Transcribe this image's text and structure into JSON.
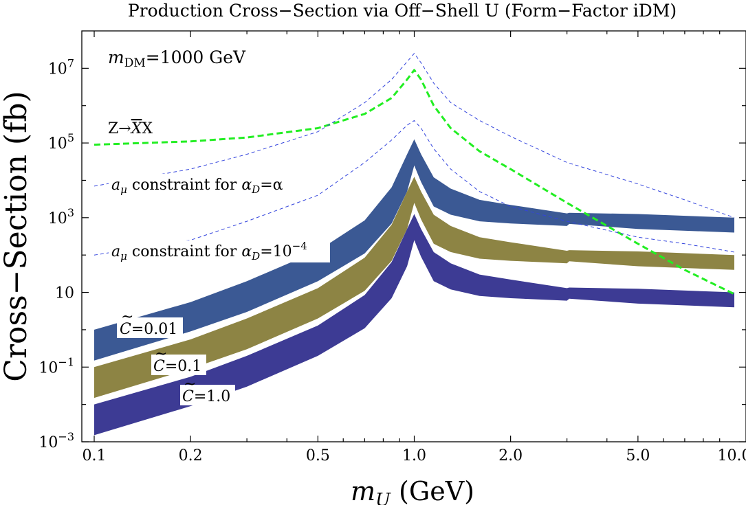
{
  "chart_data": {
    "type": "line",
    "title": "Production Cross−Section via Off−Shell U (Form−Factor iDM)",
    "xlabel_italic": "m",
    "xlabel_sub": "U",
    "xlabel_units": " (GeV)",
    "ylabel": "Cross−Section (fb)",
    "xscale": "log",
    "yscale": "log",
    "xlim": [
      0.1,
      10.0
    ],
    "ylim": [
      0.001,
      100000000
    ],
    "x_tick_labels": [
      "0.1",
      "0.2",
      "0.5",
      "1.0",
      "2.0",
      "5.0",
      "10.0"
    ],
    "x_ticks": [
      0.1,
      0.2,
      0.5,
      1.0,
      2.0,
      5.0,
      10.0
    ],
    "y_ticks": [
      0.001,
      0.1,
      10,
      1000,
      100000,
      10000000
    ],
    "y_tick_labels": [
      {
        "base": "10",
        "exp": "−3"
      },
      {
        "base": "10",
        "exp": "−1"
      },
      {
        "base": "10",
        "exp": ""
      },
      {
        "base": "10",
        "exp": "3"
      },
      {
        "base": "10",
        "exp": "5"
      },
      {
        "base": "10",
        "exp": "7"
      }
    ],
    "annotations": {
      "mdm_italic": "m",
      "mdm_sub": "DM",
      "mdm_rest": "=1000 GeV",
      "z_label_a": "Z→",
      "z_label_bar": "X",
      "z_label_b": "X",
      "amu_alpha_a": "a",
      "amu_alpha_sub": "μ",
      "amu_alpha_b": " constraint for ",
      "amu_alpha_c": "α",
      "amu_alpha_csub": "D",
      "amu_alpha_d": "=α",
      "amu_1e4_a": "a",
      "amu_1e4_sub": "μ",
      "amu_1e4_b": " constraint for ",
      "amu_1e4_c": "α",
      "amu_1e4_csub": "D",
      "amu_1e4_d": "=10",
      "amu_1e4_exp": "−4",
      "c001_c": "C",
      "c001_tilde": "~",
      "c001_rest": "=0.01",
      "c01_c": "C",
      "c01_tilde": "~",
      "c01_rest": "=0.1",
      "c1_c": "C",
      "c1_tilde": "~",
      "c1_rest": "=1.0"
    },
    "bands": [
      {
        "name": "C=0.01",
        "color": "#3b5994",
        "x": [
          0.1,
          0.2,
          0.3,
          0.5,
          0.7,
          0.85,
          0.95,
          1.0,
          1.05,
          1.15,
          1.3,
          1.6,
          2.0,
          3.0,
          3.05,
          5.0,
          10.0
        ],
        "low": [
          0.15,
          0.9,
          3.0,
          20,
          110,
          700,
          5000,
          25000,
          9000,
          2000,
          1200,
          800,
          700,
          600,
          680,
          500,
          400
        ],
        "high": [
          1.0,
          5.5,
          20,
          130,
          850,
          6500,
          50000,
          125000,
          50000,
          12000,
          6000,
          3000,
          2200,
          1300,
          1350,
          1250,
          1000
        ]
      },
      {
        "name": "C=0.1",
        "color": "#8d8444",
        "x": [
          0.1,
          0.2,
          0.3,
          0.5,
          0.7,
          0.85,
          0.95,
          1.0,
          1.05,
          1.15,
          1.3,
          1.6,
          2.0,
          3.0,
          3.05,
          5.0,
          10.0
        ],
        "low": [
          0.015,
          0.09,
          0.3,
          2.0,
          11,
          70,
          500,
          2500,
          900,
          200,
          120,
          80,
          70,
          60,
          68,
          50,
          40
        ],
        "high": [
          0.1,
          0.55,
          2.0,
          13,
          85,
          650,
          5000,
          12500,
          5000,
          1200,
          600,
          300,
          220,
          130,
          135,
          125,
          100
        ]
      },
      {
        "name": "C=1.0",
        "color": "#3d3b94",
        "x": [
          0.1,
          0.2,
          0.3,
          0.5,
          0.7,
          0.85,
          0.95,
          1.0,
          1.05,
          1.15,
          1.3,
          1.6,
          2.0,
          3.0,
          3.05,
          5.0,
          10.0
        ],
        "low": [
          0.0015,
          0.009,
          0.03,
          0.2,
          1.1,
          7,
          50,
          250,
          90,
          20,
          12,
          8,
          7,
          6,
          6.8,
          5,
          4
        ],
        "high": [
          0.01,
          0.055,
          0.2,
          1.3,
          8.5,
          65,
          500,
          1250,
          500,
          120,
          60,
          30,
          22,
          13,
          13.5,
          12.5,
          10
        ]
      }
    ],
    "series": [
      {
        "name": "Z→XX",
        "color": "#22ee22",
        "style": "dashed-thick",
        "x": [
          0.1,
          0.2,
          0.3,
          0.5,
          0.7,
          0.85,
          0.95,
          1.0,
          1.05,
          1.15,
          1.3,
          1.6,
          2.0,
          3.0,
          5.0,
          7.0,
          10.0
        ],
        "y": [
          90000,
          110000,
          140000,
          250000,
          600000,
          1600000,
          5000000,
          9000000,
          5000000,
          1000000,
          250000,
          60000,
          20000,
          2500,
          200,
          40,
          9
        ]
      },
      {
        "name": "aμ constraint for αD=α",
        "color": "#3344dd",
        "style": "dashed-thin",
        "x": [
          0.1,
          0.2,
          0.3,
          0.5,
          0.7,
          0.85,
          0.95,
          1.0,
          1.05,
          1.15,
          1.3,
          1.6,
          2.0,
          3.0,
          5.0,
          7.0,
          10.0
        ],
        "y": [
          7000,
          20000,
          50000,
          200000,
          1200000,
          5000000,
          15000000,
          25000000,
          14000000,
          4000000,
          1200000,
          400000,
          150000,
          30000,
          8000,
          3000,
          1000
        ]
      },
      {
        "name": "aμ constraint for αD=10⁻⁴",
        "color": "#3344dd",
        "style": "dashed-thin",
        "x": [
          0.1,
          0.2,
          0.3,
          0.5,
          0.7,
          0.85,
          0.95,
          1.0,
          1.05,
          1.15,
          1.3,
          1.6,
          2.0,
          3.0,
          5.0,
          7.0,
          10.0
        ],
        "y": [
          100,
          250,
          800,
          4000,
          30000,
          120000,
          300000,
          400000,
          250000,
          70000,
          20000,
          5000,
          2000,
          800,
          300,
          200,
          120
        ]
      }
    ]
  }
}
